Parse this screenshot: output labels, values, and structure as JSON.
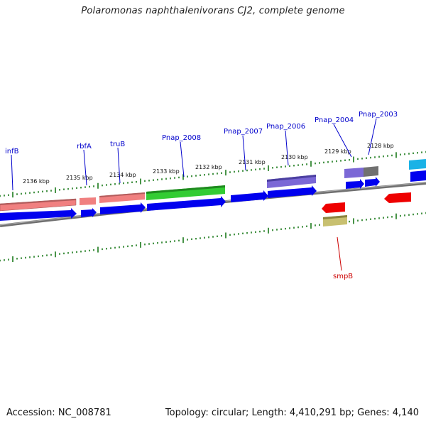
{
  "title": "Polaromonas naphthalenivorans CJ2, complete genome",
  "footer": {
    "accession": "Accession: NC_008781",
    "summary": "Topology: circular; Length: 4,410,291 bp; Genes: 4,140"
  },
  "colors": {
    "backbone": "#808080",
    "ticks": "#1a7a1a",
    "tick_label": "#111111",
    "gene_label_forward": "#0000cc",
    "gene_label_reverse": "#cc0000",
    "cds_forward": "#0000ee",
    "cds_reverse": "#ee0000"
  },
  "position_labels": [
    "2136 kbp",
    "2135 kbp",
    "2134 kbp",
    "2133 kbp",
    "2132 kbp",
    "2131 kbp",
    "2130 kbp",
    "2129 kbp",
    "2128 kbp"
  ],
  "gene_labels": [
    {
      "name": "infB",
      "strand": "forward"
    },
    {
      "name": "rbfA",
      "strand": "forward"
    },
    {
      "name": "truB",
      "strand": "forward"
    },
    {
      "name": "Pnap_2008",
      "strand": "forward"
    },
    {
      "name": "Pnap_2007",
      "strand": "forward"
    },
    {
      "name": "Pnap_2006",
      "strand": "forward"
    },
    {
      "name": "Pnap_2004",
      "strand": "forward"
    },
    {
      "name": "Pnap_2003",
      "strand": "forward"
    },
    {
      "name": "smpB",
      "strand": "reverse"
    }
  ],
  "features": [
    {
      "type": "cog",
      "color": "#f08080",
      "strand": "forward"
    },
    {
      "type": "cog",
      "color": "#f08080",
      "strand": "forward"
    },
    {
      "type": "cog",
      "color": "#f08080",
      "strand": "forward"
    },
    {
      "type": "cog",
      "color": "#33cc33",
      "strand": "forward"
    },
    {
      "type": "cog",
      "color": "#7b68d6",
      "strand": "forward"
    },
    {
      "type": "cog",
      "color": "#7b68d6",
      "strand": "forward"
    },
    {
      "type": "cog",
      "color": "#707070",
      "strand": "forward"
    },
    {
      "type": "cog",
      "color": "#1ab2e6",
      "strand": "forward"
    },
    {
      "type": "cog",
      "color": "#c8c070",
      "strand": "reverse"
    }
  ]
}
